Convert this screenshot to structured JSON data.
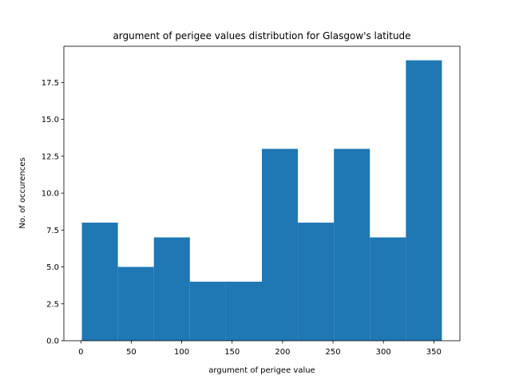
{
  "chart_data": {
    "type": "bar",
    "title": "argument of perigee values distribution for Glasgow's latitude",
    "xlabel": "argument of perigee value",
    "ylabel": "No. of occurences",
    "bins": [
      {
        "x0": 1,
        "x1": 36.7,
        "count": 8
      },
      {
        "x0": 36.7,
        "x1": 72.4,
        "count": 5
      },
      {
        "x0": 72.4,
        "x1": 108.1,
        "count": 7
      },
      {
        "x0": 108.1,
        "x1": 143.8,
        "count": 4
      },
      {
        "x0": 143.8,
        "x1": 179.5,
        "count": 4
      },
      {
        "x0": 179.5,
        "x1": 215.2,
        "count": 13
      },
      {
        "x0": 215.2,
        "x1": 250.9,
        "count": 8
      },
      {
        "x0": 250.9,
        "x1": 286.6,
        "count": 13
      },
      {
        "x0": 286.6,
        "x1": 322.3,
        "count": 7
      },
      {
        "x0": 322.3,
        "x1": 358,
        "count": 19
      }
    ],
    "xlim": [
      -16.85,
      375.85
    ],
    "ylim": [
      0,
      19.95
    ],
    "xticks": [
      0,
      50,
      100,
      150,
      200,
      250,
      300,
      350
    ],
    "xtick_labels": [
      "0",
      "50",
      "100",
      "150",
      "200",
      "250",
      "300",
      "350"
    ],
    "yticks": [
      0,
      2.5,
      5,
      7.5,
      10,
      12.5,
      15,
      17.5
    ],
    "ytick_labels": [
      "0.0",
      "2.5",
      "5.0",
      "7.5",
      "10.0",
      "12.5",
      "15.0",
      "17.5"
    ],
    "bar_color": "#1f77b4",
    "grid": false,
    "legend": "none"
  }
}
